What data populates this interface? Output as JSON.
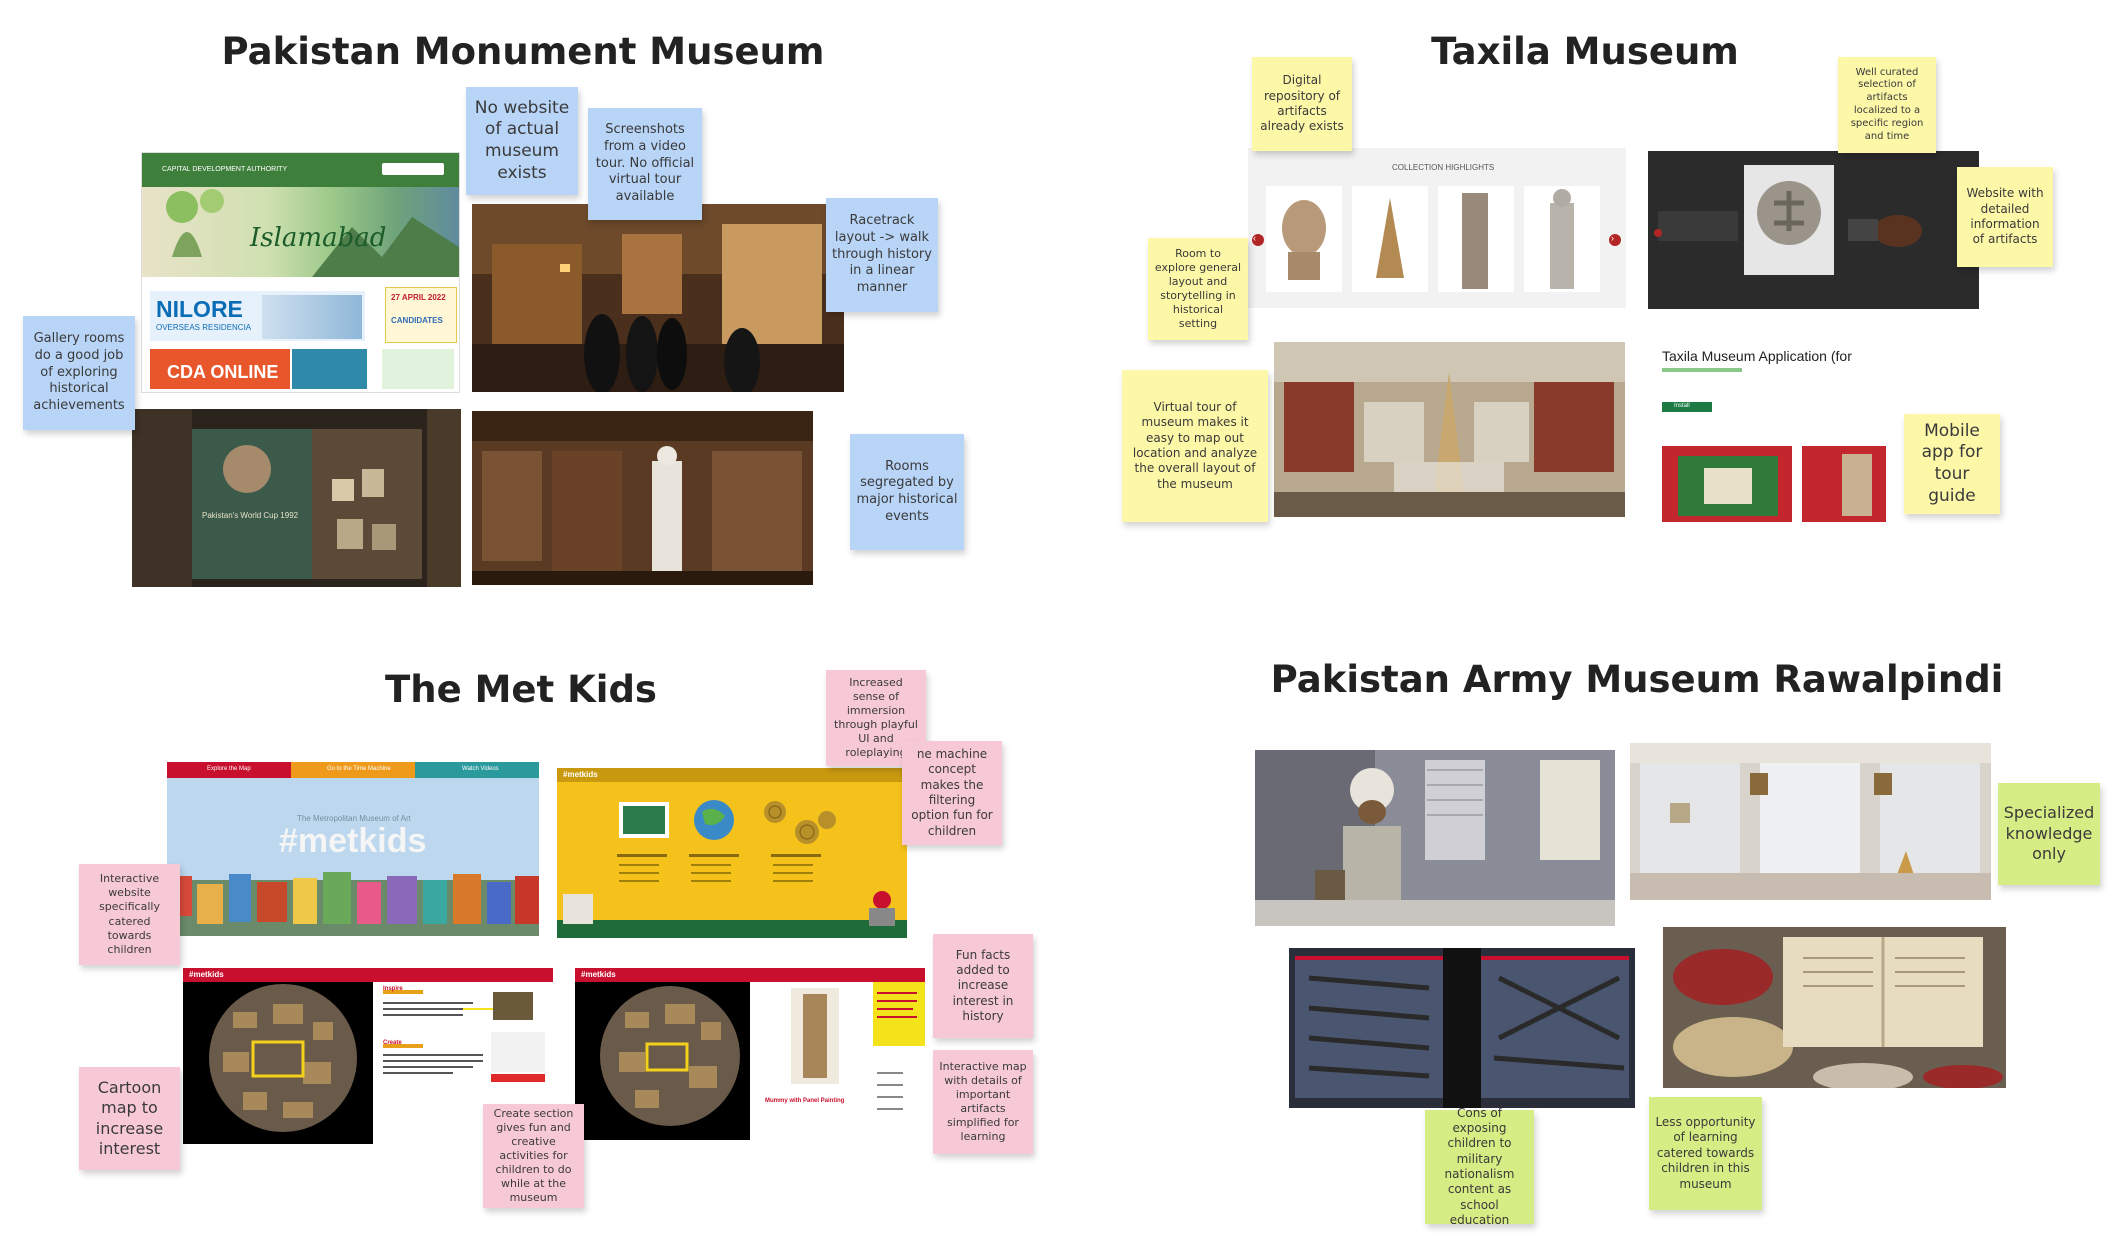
{
  "sections": {
    "pmm": {
      "title": "Pakistan Monument Museum"
    },
    "taxila": {
      "title": "Taxila Museum"
    },
    "metkids": {
      "title": "The Met Kids"
    },
    "army": {
      "title": "Pakistan Army Museum Rawalpindi"
    }
  },
  "notes": {
    "pmm_no_website": "No website of actual museum exists",
    "pmm_screenshots": "Screenshots from a video tour. No official virtual tour available",
    "pmm_racetrack": "Racetrack layout -> walk through history in a linear manner",
    "pmm_gallery": "Gallery rooms do a good job of exploring historical achievements",
    "pmm_rooms": "Rooms segregated by major historical events",
    "tax_digital": "Digital repository of artifacts already exists",
    "tax_curated": "Well curated selection of artifacts localized to a specific region and time",
    "tax_website": "Website with detailed information of artifacts",
    "tax_room": "Room to explore general layout and storytelling in historical setting",
    "tax_virtual": "Virtual tour of museum makes it easy to map out location and analyze the overall layout of the museum",
    "tax_mobile": "Mobile app for tour guide",
    "met_immersion": "Increased sense of immersion through playful UI and roleplaying",
    "met_machine": "ne machine concept makes the filtering option fun for children",
    "met_interactive": "Interactive website specifically catered towards children",
    "met_funfacts": "Fun facts added to increase interest in history",
    "met_cartoon": "Cartoon map to increase interest",
    "met_create": "Create section gives fun and creative activities for children to do while at the museum",
    "met_map": "Interactive map with details of important artifacts simplified for learning",
    "army_specialized": "Specialized knowledge only",
    "army_cons": "Cons of exposing children to military nationalism content as school education",
    "army_less": "Less opportunity of learning catered towards children in this museum"
  },
  "screens": {
    "cda": {
      "header": "CAPITAL DEVELOPMENT AUTHORITY",
      "islamabad": "Islamabad",
      "nilore": "NILORE",
      "overseas": "OVERSEAS RESIDENCIA",
      "cda_online": "CDA ONLINE",
      "date_banner": "27 APRIL 2022",
      "candidates": "CANDIDATES"
    },
    "gallery_caption": "Pakistan's World Cup 1992",
    "taxila_collection": "COLLECTION HIGHLIGHTS",
    "taxila_app_title": "Taxila Museum Application (for",
    "taxila_install": "Install",
    "metkids": {
      "nav": [
        "Explore the Map",
        "Go to the Time Machine",
        "Watch Videos"
      ],
      "subtitle": "The Metropolitan Museum of Art",
      "logo": "#metkids",
      "logo_small": "#metkids",
      "hear_heading": "Inspire",
      "create_heading": "Create",
      "artifact_caption": "Mummy with Panel Painting"
    }
  },
  "colors": {
    "blue_note": "#b8d4f7",
    "yellow_note": "#fdf7a8",
    "pink_note": "#f7c9d6",
    "green_note": "#d6ec84",
    "metkids_red": "#c8102e",
    "metkids_yellow": "#f4c21b",
    "metkids_green": "#1f6b3a"
  },
  "icons": [
    "arrow-left-icon",
    "arrow-right-icon",
    "sunburst-icon"
  ]
}
